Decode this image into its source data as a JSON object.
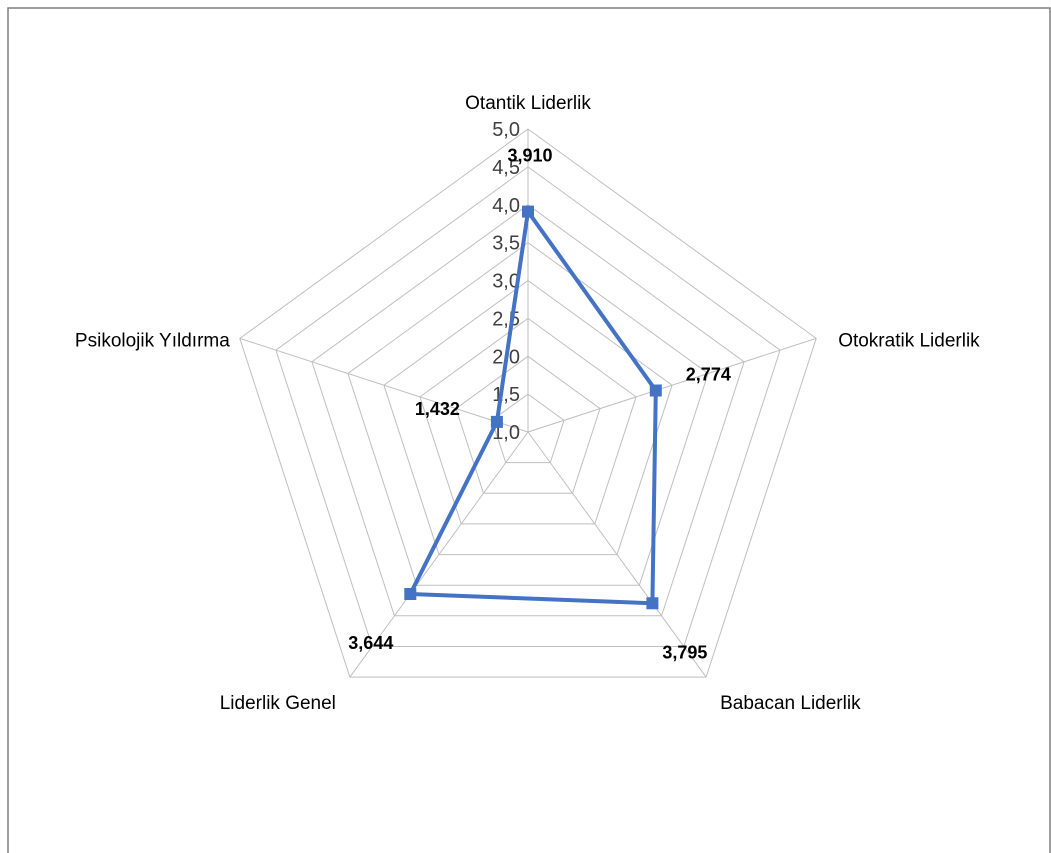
{
  "chart_data": {
    "type": "radar",
    "categories": [
      "Otantik Liderlik",
      "Otokratik Liderlik",
      "Babacan Liderlik",
      "Liderlik Genel",
      "Psikolojik Yıldırma"
    ],
    "series": [
      {
        "values": [
          3.91,
          2.774,
          3.795,
          3.644,
          1.432
        ]
      }
    ],
    "data_labels": [
      "3,910",
      "2,774",
      "3,795",
      "3,644",
      "1,432"
    ],
    "rlim": [
      1.0,
      5.0
    ],
    "ticks": [
      1.0,
      1.5,
      2.0,
      2.5,
      3.0,
      3.5,
      4.0,
      4.5,
      5.0
    ],
    "tick_labels": [
      "1,0",
      "1,5",
      "2,0",
      "2,5",
      "3,0",
      "3,5",
      "4,0",
      "4,5",
      "5,0"
    ],
    "grid": true,
    "legend": "none",
    "colors": {
      "series": "#4472c4",
      "grid": "#bfbfbf",
      "frame": "#7f7f7f"
    }
  }
}
